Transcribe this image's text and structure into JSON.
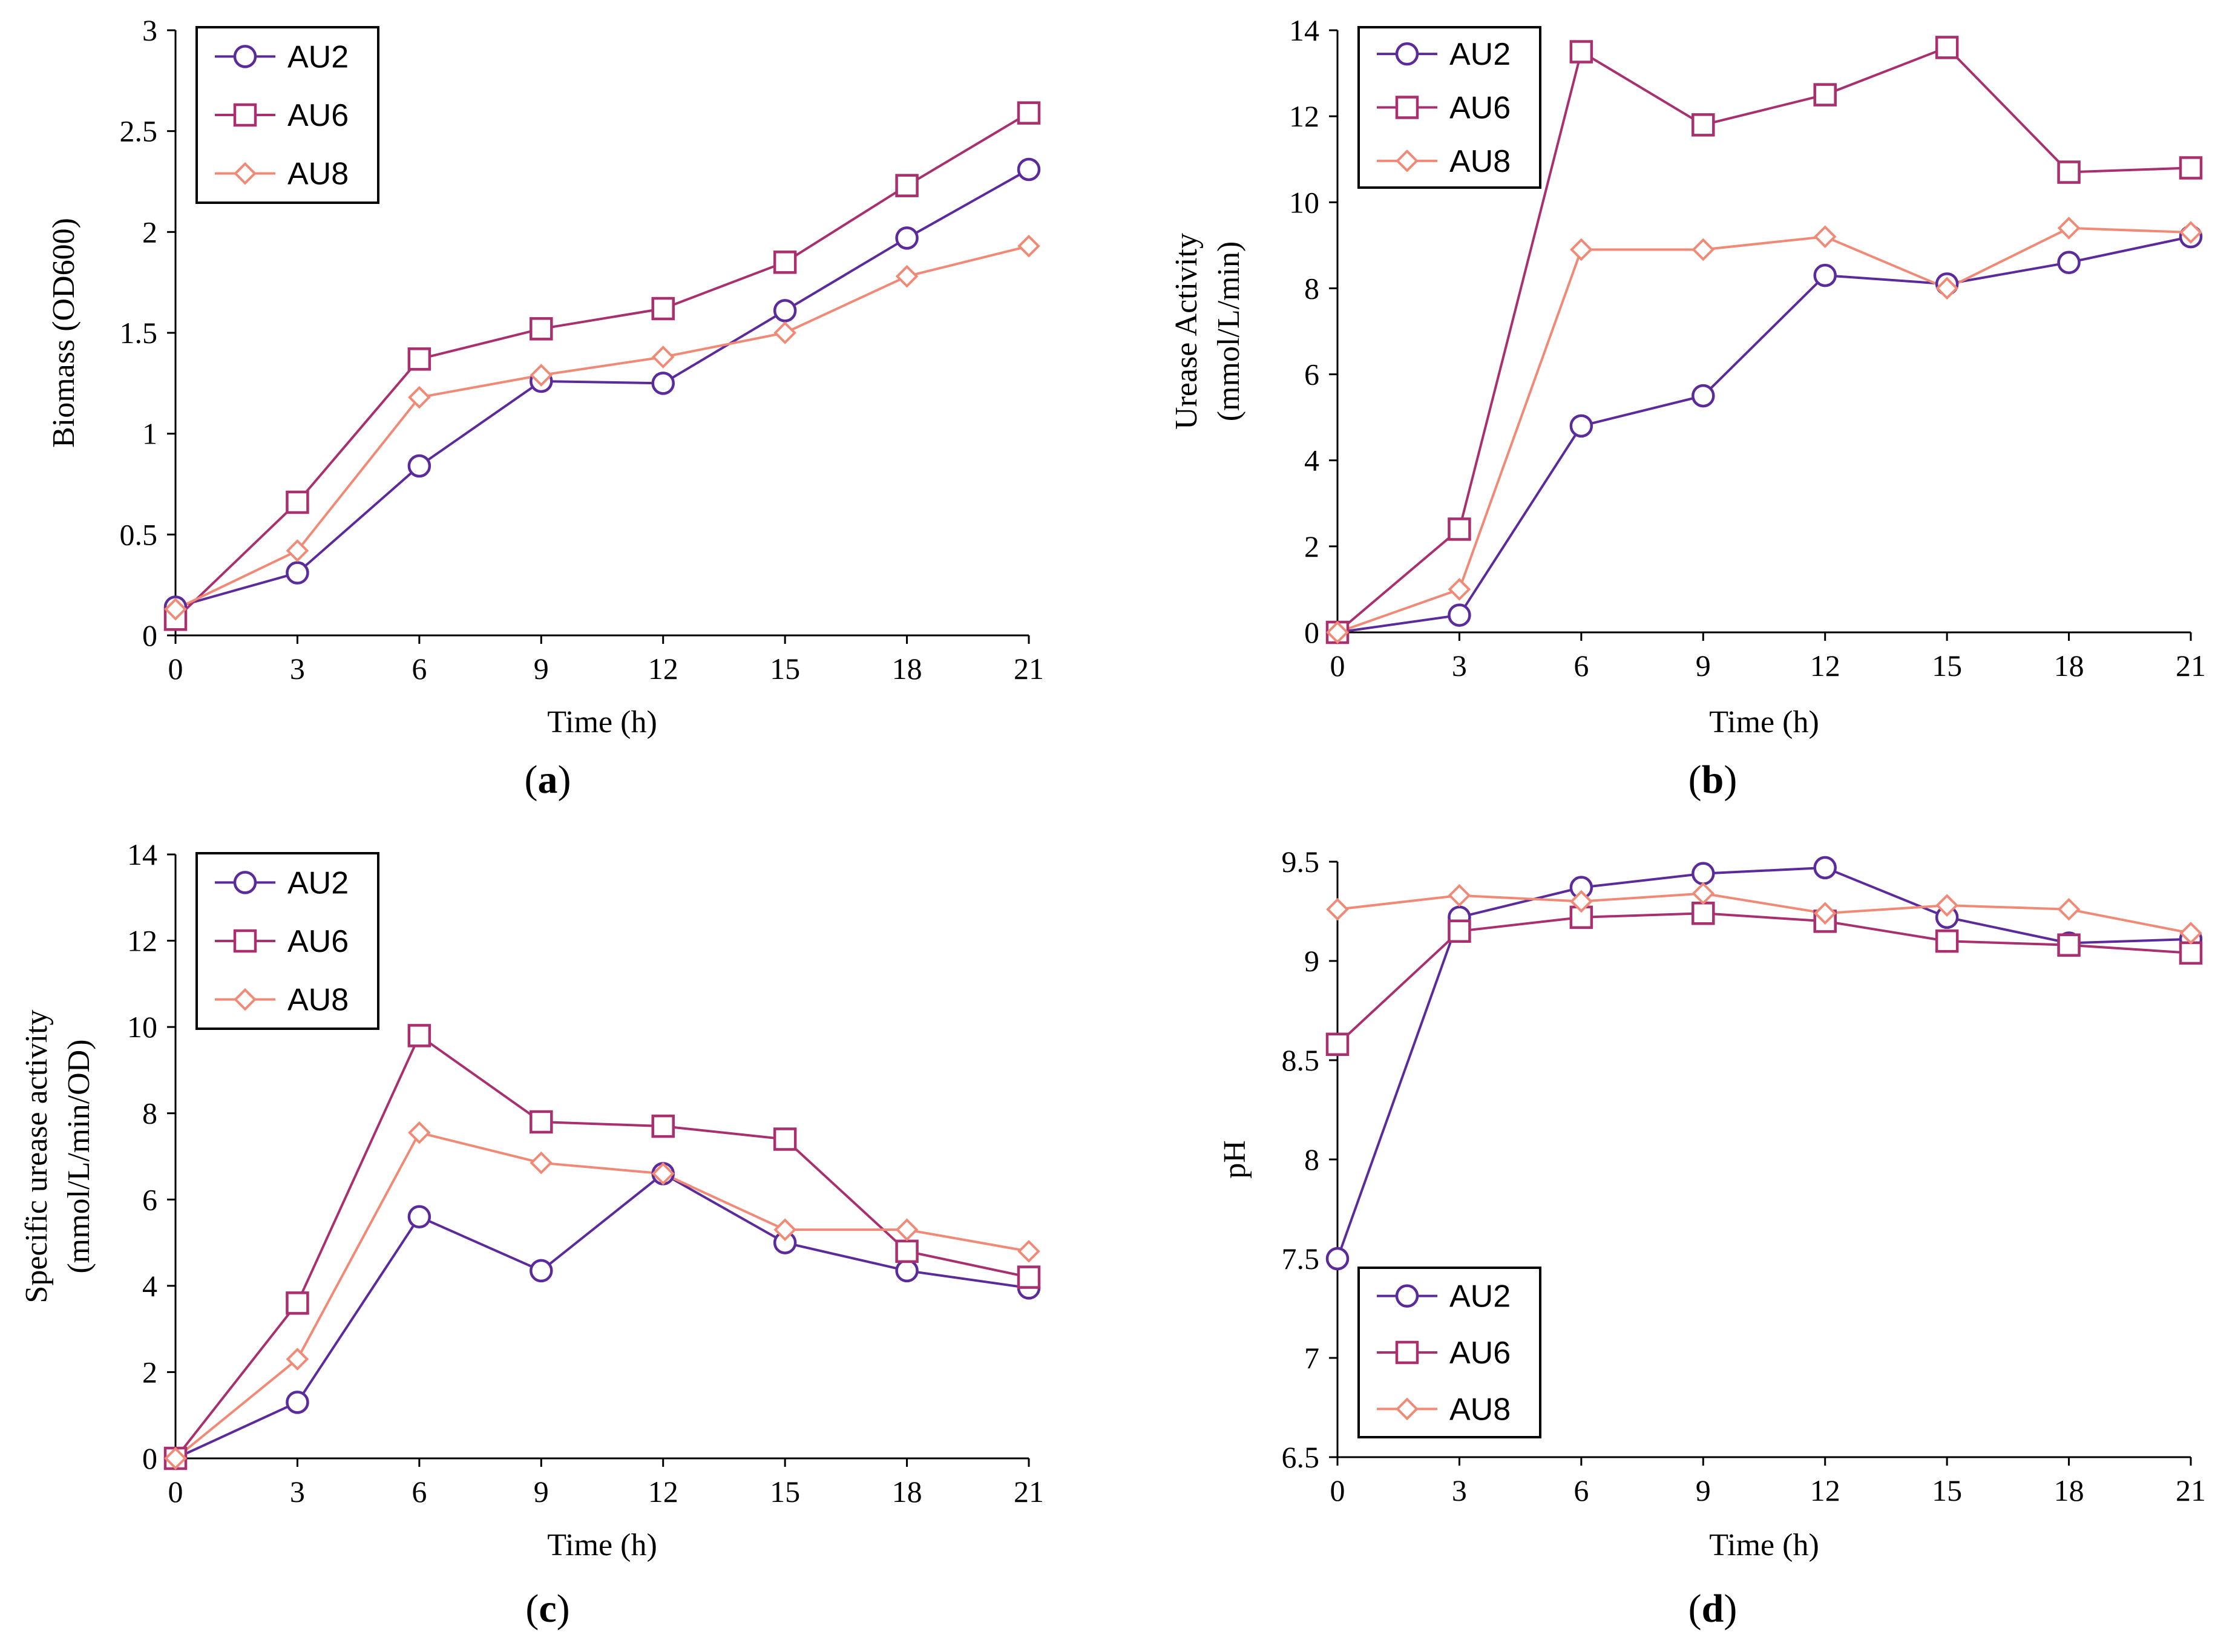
{
  "colors": {
    "AU2": "#5b2a9b",
    "AU6": "#a8306e",
    "AU8": "#f08a76"
  },
  "markers": {
    "AU2": "circle",
    "AU6": "square",
    "AU8": "diamond"
  },
  "chart_data": [
    {
      "id": "a",
      "panel_label": "a",
      "type": "line",
      "xlabel": "Time (h)",
      "ylabel": [
        "Biomass (OD600)"
      ],
      "x": [
        0,
        3,
        6,
        9,
        12,
        15,
        18,
        21
      ],
      "xticks": [
        "0",
        "3",
        "6",
        "9",
        "12",
        "15",
        "18",
        "21"
      ],
      "yticks": [
        "0",
        "0.5",
        "1",
        "1.5",
        "2",
        "2.5",
        "3"
      ],
      "ylim": [
        0,
        3
      ],
      "legend": "top-left",
      "series": [
        {
          "name": "AU2",
          "values": [
            0.14,
            0.31,
            0.84,
            1.26,
            1.25,
            1.61,
            1.97,
            2.31
          ]
        },
        {
          "name": "AU6",
          "values": [
            0.08,
            0.66,
            1.37,
            1.52,
            1.62,
            1.85,
            2.23,
            2.59
          ]
        },
        {
          "name": "AU8",
          "values": [
            0.13,
            0.42,
            1.18,
            1.29,
            1.38,
            1.5,
            1.78,
            1.93
          ]
        }
      ]
    },
    {
      "id": "b",
      "panel_label": "b",
      "type": "line",
      "xlabel": "Time (h)",
      "ylabel": [
        "Urease Activity",
        "(mmol/L/min)"
      ],
      "x": [
        0,
        3,
        6,
        9,
        12,
        15,
        18,
        21
      ],
      "xticks": [
        "0",
        "3",
        "6",
        "9",
        "12",
        "15",
        "18",
        "21"
      ],
      "yticks": [
        "0",
        "2",
        "4",
        "6",
        "8",
        "10",
        "12",
        "14"
      ],
      "ylim": [
        0,
        14
      ],
      "legend": "top-left",
      "series": [
        {
          "name": "AU2",
          "values": [
            0.0,
            0.4,
            4.8,
            5.5,
            8.3,
            8.1,
            8.6,
            9.2
          ]
        },
        {
          "name": "AU6",
          "values": [
            0.0,
            2.4,
            13.5,
            11.8,
            12.5,
            13.6,
            10.7,
            10.8
          ]
        },
        {
          "name": "AU8",
          "values": [
            0.0,
            1.0,
            8.9,
            8.9,
            9.2,
            8.0,
            9.4,
            9.3
          ]
        }
      ]
    },
    {
      "id": "c",
      "panel_label": "c",
      "type": "line",
      "xlabel": "Time (h)",
      "ylabel": [
        "Specific urease activity",
        "(mmol/L/min/OD)"
      ],
      "x": [
        0,
        3,
        6,
        9,
        12,
        15,
        18,
        21
      ],
      "xticks": [
        "0",
        "3",
        "6",
        "9",
        "12",
        "15",
        "18",
        "21"
      ],
      "yticks": [
        "0",
        "2",
        "4",
        "6",
        "8",
        "10",
        "12",
        "14"
      ],
      "ylim": [
        0,
        14
      ],
      "legend": "top-left",
      "series": [
        {
          "name": "AU2",
          "values": [
            0.0,
            1.3,
            5.6,
            4.35,
            6.6,
            5.0,
            4.35,
            3.95
          ]
        },
        {
          "name": "AU6",
          "values": [
            0.0,
            3.6,
            9.8,
            7.8,
            7.7,
            7.4,
            4.8,
            4.2
          ]
        },
        {
          "name": "AU8",
          "values": [
            0.0,
            2.3,
            7.55,
            6.85,
            6.6,
            5.3,
            5.3,
            4.8
          ]
        }
      ]
    },
    {
      "id": "d",
      "panel_label": "d",
      "type": "line",
      "xlabel": "Time (h)",
      "ylabel": [
        "pH"
      ],
      "x": [
        0,
        3,
        6,
        9,
        12,
        15,
        18,
        21
      ],
      "xticks": [
        "0",
        "3",
        "6",
        "9",
        "12",
        "15",
        "18",
        "21"
      ],
      "yticks": [
        "6.5",
        "7",
        "7.5",
        "8",
        "8.5",
        "9",
        "9.5"
      ],
      "ylim": [
        6.5,
        9.5
      ],
      "legend": "bottom-left",
      "series": [
        {
          "name": "AU2",
          "values": [
            7.5,
            9.22,
            9.37,
            9.44,
            9.47,
            9.22,
            9.09,
            9.11
          ]
        },
        {
          "name": "AU6",
          "values": [
            8.58,
            9.15,
            9.22,
            9.24,
            9.2,
            9.1,
            9.08,
            9.04
          ]
        },
        {
          "name": "AU8",
          "values": [
            9.26,
            9.33,
            9.3,
            9.34,
            9.24,
            9.28,
            9.26,
            9.14
          ]
        }
      ]
    }
  ]
}
